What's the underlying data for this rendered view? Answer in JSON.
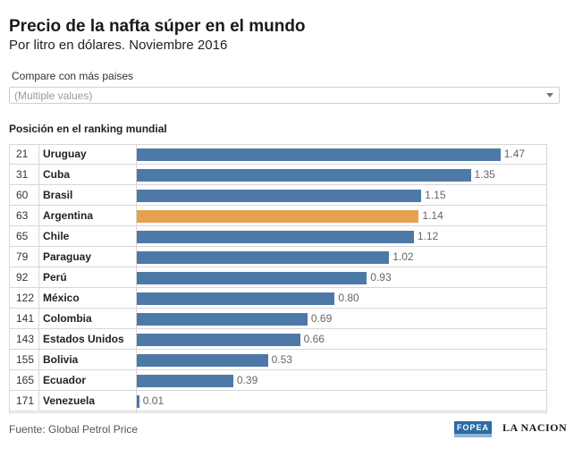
{
  "header": {
    "title": "Precio de la nafta súper en el mundo",
    "subtitle": "Por litro en dólares. Noviembre 2016"
  },
  "filter": {
    "label": "Compare con más paises",
    "value": "(Multiple values)"
  },
  "table_header": "Posición en el ranking mundial",
  "chart_data": {
    "type": "bar",
    "orientation": "horizontal",
    "highlight_color": "#e6a04e",
    "bar_color": "#4e79a7",
    "rows": [
      {
        "rank": "21",
        "country": "Uruguay",
        "value": 1.47,
        "label": "1.47",
        "highlight": false
      },
      {
        "rank": "31",
        "country": "Cuba",
        "value": 1.35,
        "label": "1.35",
        "highlight": false
      },
      {
        "rank": "60",
        "country": "Brasil",
        "value": 1.15,
        "label": "1.15",
        "highlight": false
      },
      {
        "rank": "63",
        "country": "Argentina",
        "value": 1.14,
        "label": "1.14",
        "highlight": true
      },
      {
        "rank": "65",
        "country": "Chile",
        "value": 1.12,
        "label": "1.12",
        "highlight": false
      },
      {
        "rank": "79",
        "country": "Paraguay",
        "value": 1.02,
        "label": "1.02",
        "highlight": false
      },
      {
        "rank": "92",
        "country": "Perú",
        "value": 0.93,
        "label": "0.93",
        "highlight": false
      },
      {
        "rank": "122",
        "country": "México",
        "value": 0.8,
        "label": "0.80",
        "highlight": false
      },
      {
        "rank": "141",
        "country": "Colombia",
        "value": 0.69,
        "label": "0.69",
        "highlight": false
      },
      {
        "rank": "143",
        "country": "Estados Unidos",
        "value": 0.66,
        "label": "0.66",
        "highlight": false
      },
      {
        "rank": "155",
        "country": "Bolivia",
        "value": 0.53,
        "label": "0.53",
        "highlight": false
      },
      {
        "rank": "165",
        "country": "Ecuador",
        "value": 0.39,
        "label": "0.39",
        "highlight": false
      },
      {
        "rank": "171",
        "country": "Venezuela",
        "value": 0.01,
        "label": "0.01",
        "highlight": false
      }
    ],
    "xlim": [
      0,
      1.5
    ]
  },
  "footer": {
    "source": "Fuente: Global Petrol Price",
    "logo1": "FOPEA",
    "logo2": "LA NACION"
  }
}
